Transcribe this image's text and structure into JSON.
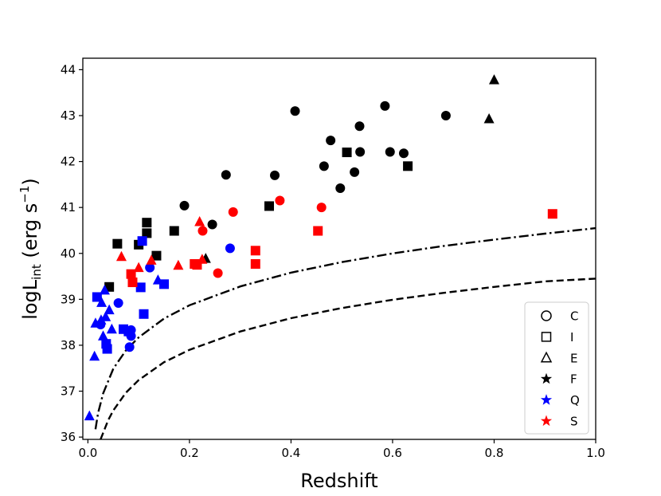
{
  "chart_data": {
    "type": "scatter",
    "title": "",
    "xlabel": "Redshift",
    "ylabel": {
      "main": "logL",
      "sub": "int",
      "unit_pre": " (erg s",
      "unit_sup": "−1",
      "unit_post": ")"
    },
    "xlim": [
      -0.01,
      1.0
    ],
    "ylim": [
      35.95,
      44.25
    ],
    "xticks": [
      0.0,
      0.2,
      0.4,
      0.6,
      0.8,
      1.0
    ],
    "xtick_labels": [
      "0.0",
      "0.2",
      "0.4",
      "0.6",
      "0.8",
      "1.0"
    ],
    "yticks": [
      36,
      37,
      38,
      39,
      40,
      41,
      42,
      43,
      44
    ],
    "ytick_labels": [
      "36",
      "37",
      "38",
      "39",
      "40",
      "41",
      "42",
      "43",
      "44"
    ],
    "grid": false,
    "colors": {
      "black": "#000000",
      "blue": "#0000ff",
      "red": "#ff0000"
    },
    "series": [
      {
        "name": "C-F",
        "marker": "circle",
        "color": "black",
        "x": [
          0.408,
          0.585,
          0.705,
          0.535,
          0.478,
          0.536,
          0.595,
          0.622,
          0.465,
          0.272,
          0.368,
          0.525,
          0.497,
          0.19,
          0.245
        ],
        "y": [
          43.1,
          43.21,
          43.0,
          42.77,
          42.46,
          42.21,
          42.21,
          42.18,
          41.9,
          41.71,
          41.7,
          41.77,
          41.42,
          41.04,
          40.63
        ]
      },
      {
        "name": "I-F",
        "marker": "square",
        "color": "black",
        "x": [
          0.51,
          0.63,
          0.357,
          0.116,
          0.116,
          0.17,
          0.058,
          0.1,
          0.135,
          0.042
        ],
        "y": [
          42.2,
          41.9,
          41.03,
          40.67,
          40.44,
          40.49,
          40.21,
          40.19,
          39.95,
          39.27
        ]
      },
      {
        "name": "E-F",
        "marker": "triangle",
        "color": "black",
        "x": [
          0.8,
          0.79,
          0.232
        ],
        "y": [
          43.78,
          42.93,
          39.89
        ]
      },
      {
        "name": "C-Q",
        "marker": "circle",
        "color": "blue",
        "x": [
          0.28,
          0.122,
          0.06,
          0.025,
          0.085,
          0.085,
          0.082
        ],
        "y": [
          40.11,
          39.69,
          38.92,
          38.45,
          38.33,
          38.2,
          37.96
        ]
      },
      {
        "name": "I-Q",
        "marker": "square",
        "color": "blue",
        "x": [
          0.107,
          0.104,
          0.15,
          0.018,
          0.11,
          0.07,
          0.08,
          0.036,
          0.038
        ],
        "y": [
          40.27,
          39.26,
          39.33,
          39.05,
          38.68,
          38.35,
          38.3,
          38.03,
          37.92
        ]
      },
      {
        "name": "E-Q",
        "marker": "triangle",
        "color": "blue",
        "x": [
          0.033,
          0.138,
          0.027,
          0.042,
          0.035,
          0.047,
          0.026,
          0.015,
          0.03,
          0.013,
          0.003
        ],
        "y": [
          39.2,
          39.42,
          38.93,
          38.77,
          38.62,
          38.35,
          38.55,
          38.48,
          38.2,
          37.76,
          36.46
        ]
      },
      {
        "name": "C-S",
        "marker": "circle",
        "color": "red",
        "x": [
          0.378,
          0.286,
          0.46,
          0.226,
          0.256
        ],
        "y": [
          41.15,
          40.9,
          41.0,
          40.49,
          39.57
        ]
      },
      {
        "name": "I-S",
        "marker": "square",
        "color": "red",
        "x": [
          0.915,
          0.453,
          0.33,
          0.33,
          0.215,
          0.21,
          0.085,
          0.088
        ],
        "y": [
          40.86,
          40.49,
          40.06,
          39.77,
          39.75,
          39.77,
          39.55,
          39.37
        ]
      },
      {
        "name": "E-S",
        "marker": "triangle",
        "color": "red",
        "x": [
          0.22,
          0.066,
          0.1,
          0.178,
          0.125,
          0.225
        ],
        "y": [
          40.69,
          39.93,
          39.69,
          39.74,
          39.85,
          39.87
        ]
      }
    ],
    "curves": [
      {
        "name": "dash-dot limit",
        "style": "dashdot",
        "x": [
          0.015,
          0.02,
          0.03,
          0.05,
          0.075,
          0.1,
          0.15,
          0.2,
          0.3,
          0.4,
          0.5,
          0.6,
          0.7,
          0.8,
          0.9,
          1.0
        ],
        "y": [
          36.17,
          36.52,
          36.95,
          37.49,
          37.89,
          38.17,
          38.58,
          38.87,
          39.28,
          39.58,
          39.81,
          40.0,
          40.16,
          40.3,
          40.43,
          40.55
        ]
      },
      {
        "name": "dashed limit",
        "style": "dashed",
        "x": [
          0.025,
          0.03,
          0.04,
          0.05,
          0.075,
          0.1,
          0.15,
          0.2,
          0.3,
          0.4,
          0.5,
          0.6,
          0.7,
          0.8,
          0.9,
          1.0
        ],
        "y": [
          35.95,
          36.09,
          36.37,
          36.58,
          36.97,
          37.24,
          37.63,
          37.9,
          38.3,
          38.59,
          38.81,
          38.99,
          39.14,
          39.27,
          39.39,
          39.45
        ]
      }
    ],
    "legend": {
      "position": "lower-right",
      "entries": [
        {
          "symbol": "circle",
          "color": "black",
          "label": "C"
        },
        {
          "symbol": "square",
          "color": "black",
          "label": "I"
        },
        {
          "symbol": "triangle",
          "color": "black",
          "label": "E"
        },
        {
          "symbol": "star",
          "color": "black",
          "label": "F"
        },
        {
          "symbol": "star",
          "color": "blue",
          "label": "Q"
        },
        {
          "symbol": "star",
          "color": "red",
          "label": "S"
        }
      ]
    }
  }
}
